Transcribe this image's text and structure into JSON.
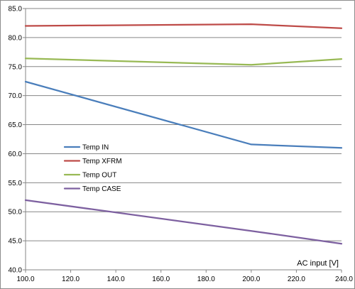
{
  "chart_data": {
    "type": "line",
    "title": "",
    "xlabel": "AC input [V]",
    "ylabel": "",
    "x": [
      100,
      200,
      240
    ],
    "xlim": [
      100,
      240
    ],
    "ylim": [
      40,
      85
    ],
    "x_ticks": [
      "100.0",
      "120.0",
      "140.0",
      "160.0",
      "180.0",
      "200.0",
      "220.0",
      "240.0"
    ],
    "y_ticks": [
      "40.0",
      "45.0",
      "50.0",
      "55.0",
      "60.0",
      "65.0",
      "70.0",
      "75.0",
      "80.0",
      "85.0"
    ],
    "grid": "horizontal",
    "legend_position": "left-center",
    "series": [
      {
        "name": "Temp IN",
        "color": "#4a7ebb",
        "values": [
          72.4,
          61.6,
          61.0
        ]
      },
      {
        "name": "Temp XFRM",
        "color": "#be4b48",
        "values": [
          82.0,
          82.3,
          81.6
        ]
      },
      {
        "name": "Temp OUT",
        "color": "#98b954",
        "values": [
          76.4,
          75.3,
          76.3
        ]
      },
      {
        "name": "Temp CASE",
        "color": "#7d60a0",
        "values": [
          52.0,
          46.7,
          44.5
        ]
      }
    ]
  }
}
